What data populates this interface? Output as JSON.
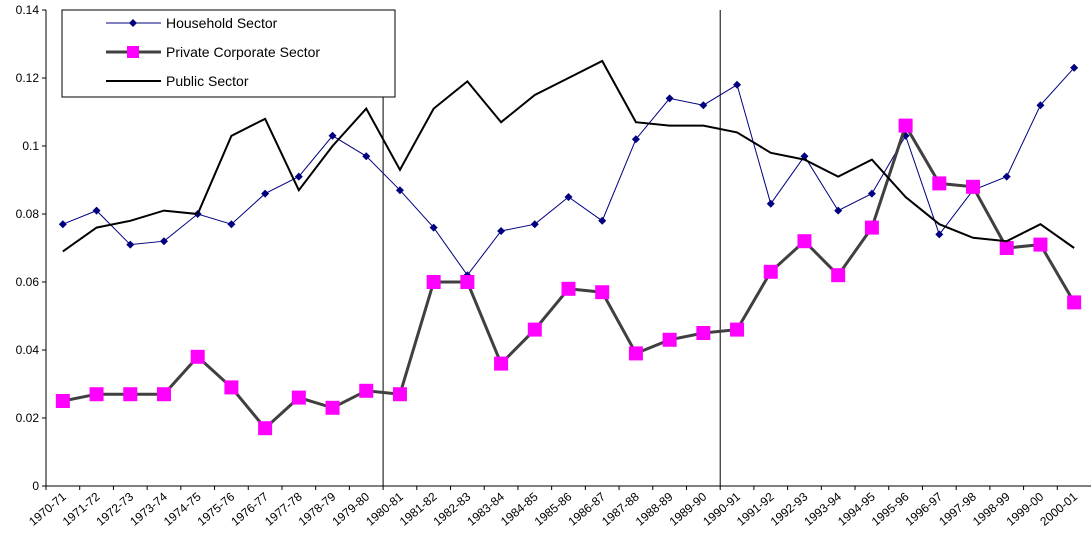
{
  "chart_data": {
    "type": "line",
    "categories": [
      "1970-71",
      "1971-72",
      "1972-73",
      "1973-74",
      "1974-75",
      "1975-76",
      "1976-77",
      "1977-78",
      "1978-79",
      "1979-80",
      "1980-81",
      "1981-82",
      "1982-83",
      "1983-84",
      "1984-85",
      "1985-86",
      "1986-87",
      "1987-88",
      "1988-89",
      "1989-90",
      "1990-91",
      "1991-92",
      "1992-93",
      "1993-94",
      "1994-95",
      "1995-96",
      "1996-97",
      "1997-98",
      "1998-99",
      "1999-00",
      "2000-01"
    ],
    "series": [
      {
        "name": "Household Sector",
        "color": "#000080",
        "values": [
          0.077,
          0.081,
          0.071,
          0.072,
          0.08,
          0.077,
          0.086,
          0.091,
          0.103,
          0.097,
          0.087,
          0.076,
          0.062,
          0.075,
          0.077,
          0.085,
          0.078,
          0.102,
          0.114,
          0.112,
          0.118,
          0.083,
          0.097,
          0.081,
          0.086,
          0.103,
          0.074,
          0.087,
          0.091,
          0.112,
          0.123
        ]
      },
      {
        "name": "Private Corporate Sector",
        "color": "#ff00ff",
        "values": [
          0.025,
          0.027,
          0.027,
          0.027,
          0.038,
          0.029,
          0.017,
          0.026,
          0.023,
          0.028,
          0.027,
          0.06,
          0.06,
          0.036,
          0.046,
          0.058,
          0.057,
          0.039,
          0.043,
          0.045,
          0.046,
          0.063,
          0.072,
          0.062,
          0.076,
          0.106,
          0.089,
          0.088,
          0.07,
          0.071,
          0.054
        ]
      },
      {
        "name": "Public Sector",
        "color": "#000000",
        "values": [
          0.069,
          0.076,
          0.078,
          0.081,
          0.08,
          0.103,
          0.108,
          0.087,
          0.1,
          0.111,
          0.093,
          0.111,
          0.119,
          0.107,
          0.115,
          0.12,
          0.125,
          0.107,
          0.106,
          0.106,
          0.104,
          0.098,
          0.096,
          0.091,
          0.096,
          0.085,
          0.077,
          0.073,
          0.072,
          0.077,
          0.07
        ]
      }
    ],
    "ylim": [
      0,
      0.14
    ],
    "yticks": [
      0,
      0.02,
      0.04,
      0.06,
      0.08,
      0.1,
      0.12,
      0.14
    ]
  }
}
